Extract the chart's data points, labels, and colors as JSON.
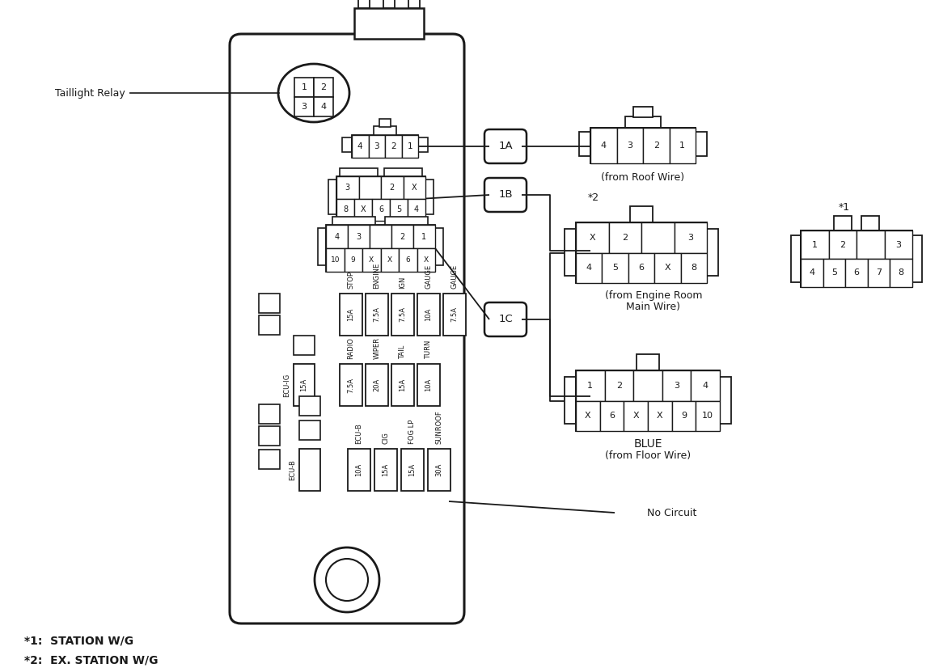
{
  "bg": "#ffffff",
  "lc": "#1a1a1a",
  "notes_bottom": [
    "*1:  STATION W/G",
    "*2:  EX. STATION W/G"
  ],
  "taillight_relay_label": "Taillight Relay",
  "from_roof_wire": "(from Roof Wire)",
  "from_engine_room_1": "(from Engine Room",
  "from_engine_room_2": "Main Wire)",
  "from_floor_wire": "(from Floor Wire)",
  "blue_label": "BLUE",
  "no_circuit": "No Circuit",
  "connector_labels": [
    "1A",
    "1B",
    "1C"
  ],
  "star1": "*1",
  "star2": "*2",
  "fuses_top": [
    {
      "name": "STOP",
      "amp": "15A"
    },
    {
      "name": "ENGINE",
      "amp": "7.5A"
    },
    {
      "name": "IGN",
      "amp": "7.5A"
    },
    {
      "name": "GAUGE",
      "amp": "10A"
    },
    {
      "name": "GAUGE",
      "amp": "7.5A"
    }
  ],
  "fuses_mid": [
    {
      "name": "RADIO",
      "amp": "7.5A"
    },
    {
      "name": "WIPER",
      "amp": "20A"
    },
    {
      "name": "TAIL",
      "amp": "15A"
    },
    {
      "name": "TURN",
      "amp": "10A"
    }
  ],
  "fuses_bot": [
    {
      "name": "ECU-B",
      "amp": "10A"
    },
    {
      "name": "CIG",
      "amp": "15A"
    },
    {
      "name": "FOG LP",
      "amp": "15A"
    },
    {
      "name": "SUNROOF",
      "amp": "30A"
    }
  ],
  "ecu_ig_label": "ECU-IG",
  "ecu_ig_amp": "15A",
  "ecu_b_label": "ECU-B"
}
